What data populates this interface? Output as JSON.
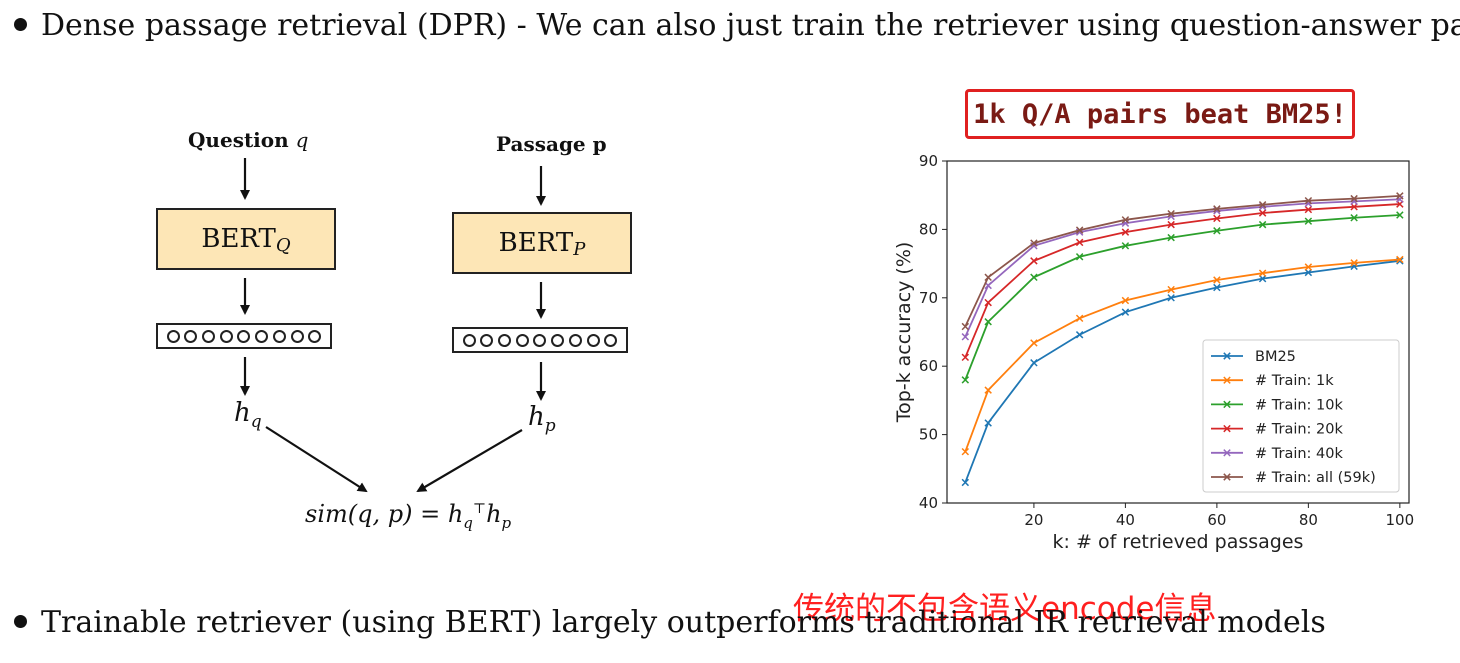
{
  "bullets": {
    "top": "Dense passage retrieval (DPR) - We can also just train the retriever using question-answer pairs!",
    "bottom": "Trainable retriever (using BERT) largely outperforms traditional IR retrieval models"
  },
  "diagram": {
    "question_label": "Question",
    "question_var": "q",
    "passage_label": "Passage p",
    "bert_q": "BERT",
    "bert_q_sub": "Q",
    "bert_p": "BERT",
    "bert_p_sub": "P",
    "hq": "h",
    "hq_sub": "q",
    "hp": "h",
    "hp_sub": "p",
    "formula_left": "sim(q, p) = h",
    "formula_sub": "q",
    "formula_sup": "⊤",
    "formula_right": "h",
    "formula_right_sub": "p"
  },
  "callout": "1k Q/A pairs beat BM25!",
  "annotation_cn": "传统的不包含语义encode信息",
  "chart_data": {
    "type": "line",
    "xlabel": "k: # of retrieved passages",
    "ylabel": "Top-k accuracy (%)",
    "xlim": [
      1,
      102
    ],
    "ylim": [
      40,
      90
    ],
    "xticks": [
      20,
      40,
      60,
      80,
      100
    ],
    "yticks": [
      40,
      50,
      60,
      70,
      80,
      90
    ],
    "legend_position": "lower-right",
    "grid": false,
    "x": [
      5,
      10,
      20,
      30,
      40,
      50,
      60,
      70,
      80,
      90,
      100
    ],
    "series": [
      {
        "name": "BM25",
        "color": "#1f77b4",
        "values": [
          43,
          51.7,
          60.5,
          64.6,
          67.9,
          70,
          71.5,
          72.8,
          73.7,
          74.6,
          75.4
        ]
      },
      {
        "name": "# Train: 1k",
        "color": "#ff7f0e",
        "values": [
          47.5,
          56.5,
          63.4,
          67,
          69.6,
          71.2,
          72.6,
          73.6,
          74.5,
          75.1,
          75.6
        ]
      },
      {
        "name": "# Train: 10k",
        "color": "#2ca02c",
        "values": [
          58,
          66.5,
          73,
          76,
          77.6,
          78.8,
          79.8,
          80.7,
          81.2,
          81.7,
          82.1
        ]
      },
      {
        "name": "# Train: 20k",
        "color": "#d62728",
        "values": [
          61.3,
          69.3,
          75.4,
          78.1,
          79.6,
          80.7,
          81.6,
          82.4,
          82.9,
          83.3,
          83.7
        ]
      },
      {
        "name": "# Train: 40k",
        "color": "#9467bd",
        "values": [
          64.3,
          71.8,
          77.6,
          79.6,
          80.9,
          81.9,
          82.7,
          83.3,
          83.8,
          84.1,
          84.4
        ]
      },
      {
        "name": "# Train: all (59k)",
        "color": "#8c564b",
        "values": [
          65.8,
          73,
          78,
          79.9,
          81.4,
          82.3,
          83,
          83.6,
          84.2,
          84.5,
          84.9
        ]
      }
    ]
  }
}
